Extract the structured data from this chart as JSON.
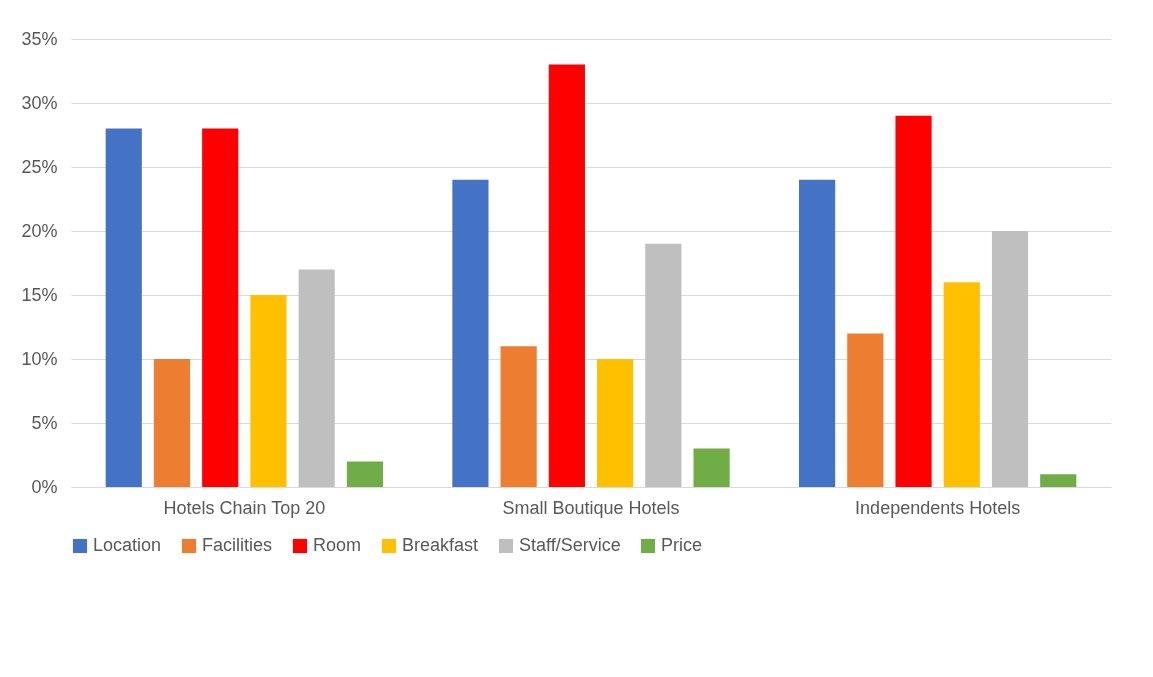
{
  "chart_data": {
    "type": "bar",
    "categories": [
      "Hotels Chain Top 20",
      "Small Boutique Hotels",
      "Independents Hotels"
    ],
    "series": [
      {
        "name": "Location",
        "color": "#4472c4",
        "values": [
          28,
          24,
          24
        ]
      },
      {
        "name": "Facilities",
        "color": "#ed7d31",
        "values": [
          10,
          11,
          12
        ]
      },
      {
        "name": "Room",
        "color": "#ff0000",
        "values": [
          28,
          33,
          29
        ]
      },
      {
        "name": "Breakfast",
        "color": "#ffc000",
        "values": [
          15,
          10,
          16
        ]
      },
      {
        "name": "Staff/Service",
        "color": "#bfbfbf",
        "values": [
          17,
          19,
          20
        ]
      },
      {
        "name": "Price",
        "color": "#70ad47",
        "values": [
          2,
          3,
          1
        ]
      }
    ],
    "ylim": [
      0,
      35
    ],
    "yticks": [
      {
        "value": 0,
        "label": "0%"
      },
      {
        "value": 5,
        "label": "5%"
      },
      {
        "value": 10,
        "label": "10%"
      },
      {
        "value": 15,
        "label": "15%"
      },
      {
        "value": 20,
        "label": "20%"
      },
      {
        "value": 25,
        "label": "25%"
      },
      {
        "value": 30,
        "label": "30%"
      },
      {
        "value": 35,
        "label": "35%"
      }
    ],
    "grid": "y",
    "legend": "bottom"
  }
}
